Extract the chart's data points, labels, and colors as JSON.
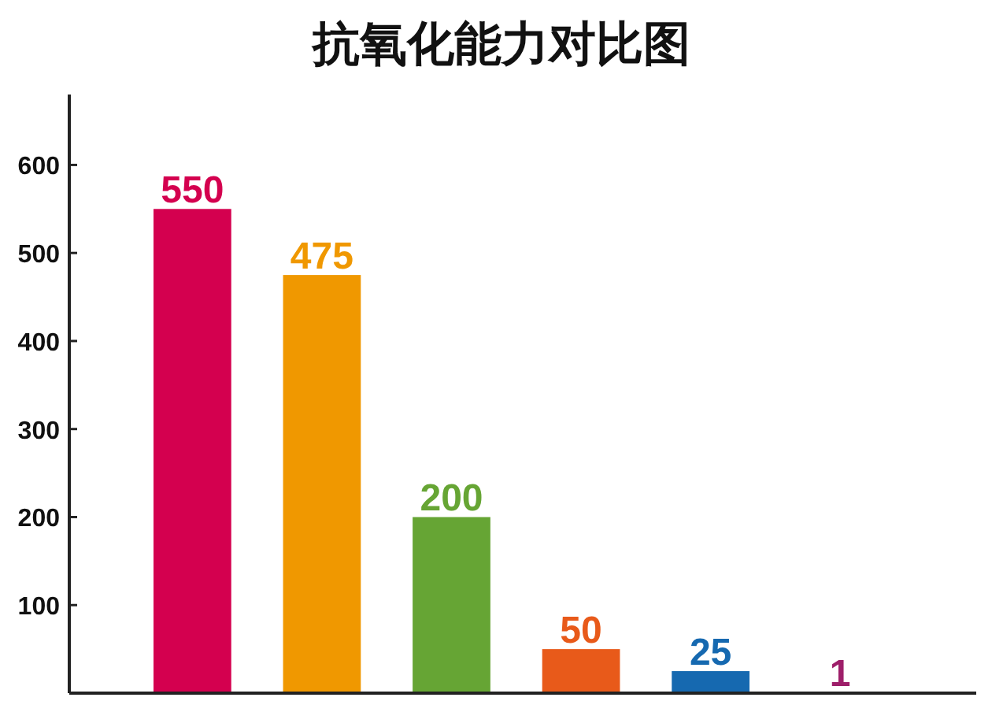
{
  "chart_data": {
    "type": "bar",
    "title": "抗氧化能力对比图",
    "categories": [
      null,
      null,
      null,
      null,
      null,
      null
    ],
    "values": [
      550,
      475,
      200,
      50,
      25,
      1
    ],
    "colors": [
      "#d4004f",
      "#f09800",
      "#66a534",
      "#e85a1a",
      "#1669b0",
      "#9e1f6a"
    ],
    "ylim": [
      0,
      680
    ],
    "yticks": [
      100,
      200,
      300,
      400,
      500,
      600
    ],
    "data_labels": true,
    "grid": false
  }
}
